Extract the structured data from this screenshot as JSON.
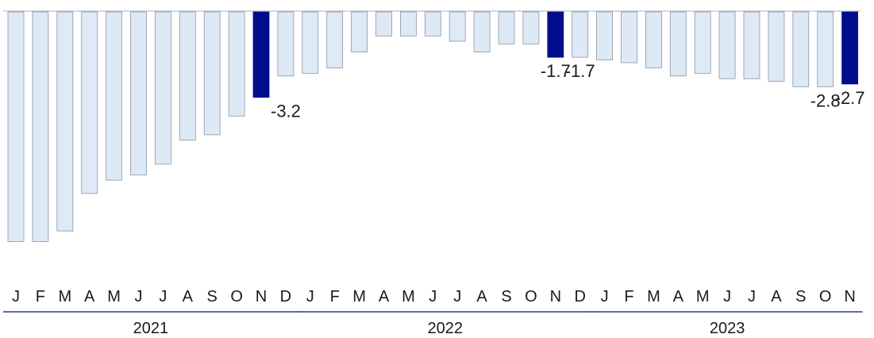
{
  "chart_data": {
    "type": "bar",
    "categories": [
      "J",
      "F",
      "M",
      "A",
      "M",
      "J",
      "J",
      "A",
      "S",
      "O",
      "N",
      "D",
      "J",
      "F",
      "M",
      "A",
      "M",
      "J",
      "J",
      "A",
      "S",
      "O",
      "N",
      "D",
      "J",
      "F",
      "M",
      "A",
      "M",
      "J",
      "J",
      "A",
      "S",
      "O",
      "N"
    ],
    "values": [
      -8.6,
      -8.6,
      -8.2,
      -6.8,
      -6.3,
      -6.1,
      -5.7,
      -4.8,
      -4.6,
      -3.9,
      -3.2,
      -2.4,
      -2.3,
      -2.1,
      -1.5,
      -0.9,
      -0.9,
      -0.9,
      -1.1,
      -1.5,
      -1.2,
      -1.2,
      -1.7,
      -1.7,
      -1.8,
      -1.9,
      -2.1,
      -2.4,
      -2.3,
      -2.5,
      -2.5,
      -2.6,
      -2.8,
      -2.8,
      -2.7
    ],
    "highlight_indices": [
      10,
      22,
      34
    ],
    "data_labels": [
      {
        "index": 10,
        "text": "-3.2"
      },
      {
        "index": 22,
        "text": "-1.7"
      },
      {
        "index": 23,
        "text": "-1.7"
      },
      {
        "index": 33,
        "text": "-2.8"
      },
      {
        "index": 34,
        "text": "-2.7"
      }
    ],
    "years": [
      {
        "label": "2021",
        "start": 0,
        "end": 11
      },
      {
        "label": "2022",
        "start": 12,
        "end": 23
      },
      {
        "label": "2023",
        "start": 24,
        "end": 34
      }
    ],
    "ylim": [
      -9,
      0
    ],
    "grid": false,
    "colors": {
      "bar": "#dde9f5",
      "bar_stroke": "#8a96a6",
      "highlight": "#000e8c",
      "zero_line": "#b0b0b0",
      "year_line": "#1f3b8a"
    }
  }
}
